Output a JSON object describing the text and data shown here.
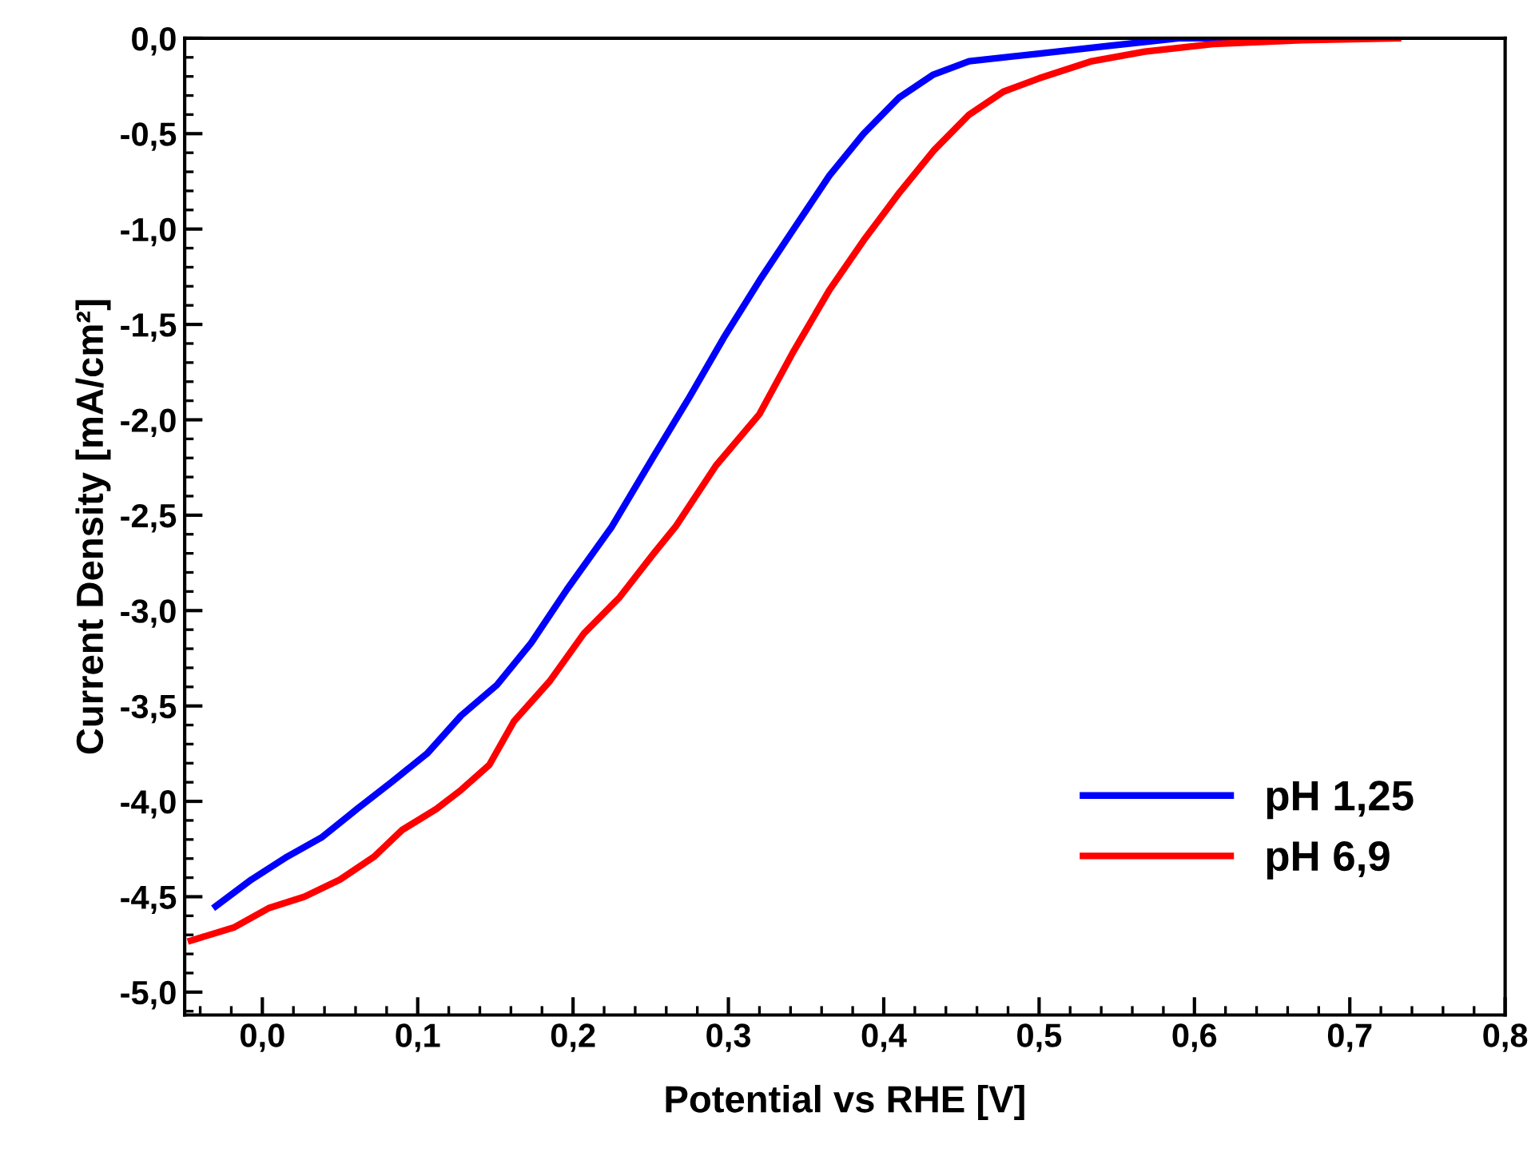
{
  "chart_data": {
    "type": "line",
    "xlabel": "Potential vs RHE [V]",
    "ylabel": "Current Density [mA/cm²]",
    "xlim": [
      -0.05,
      0.8
    ],
    "ylim": [
      -5.12,
      0
    ],
    "xticks": [
      {
        "value": 0,
        "label": "0,0"
      },
      {
        "value": 0.1,
        "label": "0,1"
      },
      {
        "value": 0.2,
        "label": "0,2"
      },
      {
        "value": 0.3,
        "label": "0,3"
      },
      {
        "value": 0.4,
        "label": "0,4"
      },
      {
        "value": 0.5,
        "label": "0,5"
      },
      {
        "value": 0.6,
        "label": "0,6"
      },
      {
        "value": 0.7,
        "label": "0,7"
      },
      {
        "value": 0.8,
        "label": "0,8"
      }
    ],
    "yticks": [
      {
        "value": 0,
        "label": "0,0"
      },
      {
        "value": -0.5,
        "label": "-0,5"
      },
      {
        "value": -1,
        "label": "-1,0"
      },
      {
        "value": -1.5,
        "label": "-1,5"
      },
      {
        "value": -2,
        "label": "-2,0"
      },
      {
        "value": -2.5,
        "label": "-2,5"
      },
      {
        "value": -3,
        "label": "-3,0"
      },
      {
        "value": -3.5,
        "label": "-3,5"
      },
      {
        "value": -4,
        "label": "-4,0"
      },
      {
        "value": -4.5,
        "label": "-4,5"
      },
      {
        "value": -5,
        "label": "-5,0"
      }
    ],
    "grid": false,
    "legend": "bottom right",
    "marker": "none",
    "line_style": "solid",
    "series": [
      {
        "name": "pH 1,25",
        "color": "#0000ff",
        "x": [
          -0.03,
          -0.007,
          0.016,
          0.038,
          0.061,
          0.083,
          0.106,
          0.128,
          0.151,
          0.173,
          0.196,
          0.225,
          0.252,
          0.275,
          0.297,
          0.32,
          0.342,
          0.365,
          0.387,
          0.41,
          0.432,
          0.455,
          0.5,
          0.545,
          0.59,
          0.725
        ],
        "values": [
          -4.55,
          -4.41,
          -4.29,
          -4.19,
          -4.04,
          -3.9,
          -3.75,
          -3.55,
          -3.39,
          -3.17,
          -2.89,
          -2.56,
          -2.19,
          -1.88,
          -1.57,
          -1.27,
          -1.0,
          -0.72,
          -0.5,
          -0.31,
          -0.19,
          -0.12,
          -0.08,
          -0.04,
          0,
          0
        ]
      },
      {
        "name": "pH 6,9",
        "color": "#ff0000",
        "x": [
          -0.046,
          -0.018,
          0.004,
          0.027,
          0.05,
          0.072,
          0.09,
          0.112,
          0.128,
          0.146,
          0.162,
          0.185,
          0.207,
          0.23,
          0.252,
          0.266,
          0.292,
          0.32,
          0.342,
          0.365,
          0.387,
          0.41,
          0.432,
          0.455,
          0.477,
          0.5,
          0.534,
          0.568,
          0.612,
          0.669,
          0.731
        ],
        "values": [
          -4.73,
          -4.66,
          -4.56,
          -4.5,
          -4.41,
          -4.29,
          -4.15,
          -4.04,
          -3.94,
          -3.81,
          -3.58,
          -3.37,
          -3.12,
          -2.93,
          -2.7,
          -2.56,
          -2.24,
          -1.97,
          -1.64,
          -1.32,
          -1.06,
          -0.81,
          -0.59,
          -0.4,
          -0.28,
          -0.21,
          -0.12,
          -0.07,
          -0.03,
          -0.01,
          0
        ]
      }
    ]
  }
}
